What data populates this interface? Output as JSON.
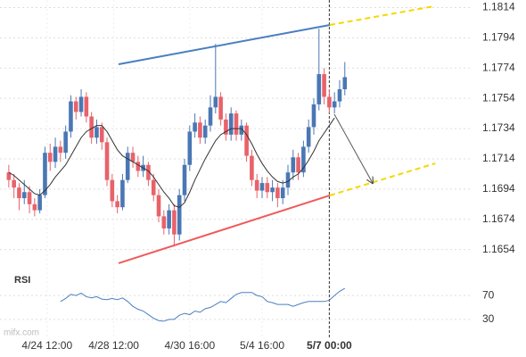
{
  "chart_data": {
    "type": "candlestick",
    "x": [
      0,
      1,
      2,
      3,
      4,
      5,
      6,
      7,
      8,
      9,
      10,
      11,
      12,
      13,
      14,
      15,
      16,
      17,
      18,
      19,
      20,
      21,
      22,
      23,
      24,
      25,
      26,
      27,
      28,
      29,
      30,
      31,
      32,
      33,
      34,
      35,
      36,
      37,
      38,
      39,
      40,
      41,
      42,
      43,
      44,
      45,
      46,
      47,
      48,
      49,
      50,
      51,
      52,
      53,
      54,
      55,
      56,
      57,
      58,
      59,
      60,
      61,
      62,
      63,
      64,
      65
    ],
    "open": [
      1.1705,
      1.17,
      1.1695,
      1.1688,
      1.1692,
      1.1684,
      1.168,
      1.169,
      1.1718,
      1.1712,
      1.1722,
      1.1718,
      1.1732,
      1.1752,
      1.1745,
      1.1755,
      1.1742,
      1.1728,
      1.1735,
      1.1725,
      1.17,
      1.1686,
      1.1682,
      1.17,
      1.1718,
      1.1712,
      1.1706,
      1.171,
      1.17,
      1.169,
      1.1676,
      1.1668,
      1.168,
      1.1664,
      1.169,
      1.171,
      1.1732,
      1.1738,
      1.1728,
      1.1736,
      1.1748,
      1.1755,
      1.174,
      1.173,
      1.1744,
      1.173,
      1.1736,
      1.1716,
      1.17,
      1.1693,
      1.1698,
      1.1692,
      1.1695,
      1.1688,
      1.1695,
      1.1705,
      1.1715,
      1.1705,
      1.1722,
      1.1735,
      1.175,
      1.177,
      1.1755,
      1.1748,
      1.1752,
      1.176
    ],
    "high": [
      1.171,
      1.1704,
      1.1698,
      1.17,
      1.1696,
      1.1688,
      1.1694,
      1.1722,
      1.1724,
      1.1728,
      1.1726,
      1.1736,
      1.1756,
      1.1755,
      1.176,
      1.1758,
      1.1745,
      1.174,
      1.1738,
      1.1728,
      1.1704,
      1.169,
      1.1704,
      1.1722,
      1.1722,
      1.1716,
      1.1716,
      1.1712,
      1.1704,
      1.1694,
      1.168,
      1.1684,
      1.1684,
      1.1694,
      1.1714,
      1.1736,
      1.1744,
      1.1742,
      1.174,
      1.1756,
      1.179,
      1.1758,
      1.1744,
      1.1748,
      1.1746,
      1.174,
      1.1738,
      1.172,
      1.1704,
      1.1702,
      1.1702,
      1.17,
      1.1698,
      1.17,
      1.171,
      1.172,
      1.1718,
      1.1726,
      1.174,
      1.1754,
      1.18,
      1.1774,
      1.176,
      1.1758,
      1.1766,
      1.1778
    ],
    "low": [
      1.1695,
      1.1688,
      1.168,
      1.1684,
      1.1678,
      1.1676,
      1.1678,
      1.1688,
      1.1706,
      1.1708,
      1.1712,
      1.1714,
      1.1728,
      1.174,
      1.1742,
      1.1738,
      1.1724,
      1.1724,
      1.172,
      1.1696,
      1.1682,
      1.1678,
      1.168,
      1.1698,
      1.1708,
      1.1702,
      1.1702,
      1.1696,
      1.1686,
      1.1672,
      1.1664,
      1.1664,
      1.1656,
      1.166,
      1.1686,
      1.1706,
      1.1728,
      1.1724,
      1.1724,
      1.1732,
      1.1744,
      1.1736,
      1.1726,
      1.1726,
      1.1726,
      1.1726,
      1.1712,
      1.1696,
      1.1688,
      1.1688,
      1.1688,
      1.1686,
      1.1682,
      1.1684,
      1.169,
      1.17,
      1.17,
      1.1702,
      1.1718,
      1.173,
      1.1746,
      1.175,
      1.1744,
      1.1744,
      1.1748,
      1.1756
    ],
    "close": [
      1.17,
      1.1695,
      1.1688,
      1.1692,
      1.1684,
      1.168,
      1.169,
      1.1718,
      1.1712,
      1.1722,
      1.1718,
      1.1732,
      1.1752,
      1.1745,
      1.1755,
      1.1742,
      1.1728,
      1.1735,
      1.1725,
      1.17,
      1.1686,
      1.1682,
      1.17,
      1.1718,
      1.1712,
      1.1706,
      1.171,
      1.17,
      1.169,
      1.1676,
      1.1668,
      1.168,
      1.1664,
      1.169,
      1.171,
      1.1732,
      1.1738,
      1.1728,
      1.1736,
      1.1748,
      1.1755,
      1.174,
      1.173,
      1.1744,
      1.173,
      1.1736,
      1.1716,
      1.17,
      1.1693,
      1.1698,
      1.1692,
      1.1695,
      1.1688,
      1.1695,
      1.1705,
      1.1715,
      1.1705,
      1.1722,
      1.1735,
      1.175,
      1.177,
      1.1755,
      1.1748,
      1.1752,
      1.176,
      1.1768
    ],
    "up_color": "#4a77b4",
    "down_color": "#e8626a",
    "ma": {
      "color": "#333333",
      "values": [
        1.1705,
        1.1703,
        1.17,
        1.1697,
        1.1694,
        1.1691,
        1.169,
        1.1693,
        1.1697,
        1.1702,
        1.1706,
        1.171,
        1.1716,
        1.1722,
        1.1728,
        1.1732,
        1.1734,
        1.1736,
        1.1736,
        1.1732,
        1.1726,
        1.172,
        1.1716,
        1.1714,
        1.1712,
        1.171,
        1.1708,
        1.1706,
        1.1702,
        1.1697,
        1.1692,
        1.1688,
        1.1683,
        1.1682,
        1.1685,
        1.1692,
        1.17,
        1.1707,
        1.1714,
        1.172,
        1.1726,
        1.173,
        1.1732,
        1.1734,
        1.1734,
        1.1734,
        1.173,
        1.1724,
        1.1717,
        1.1711,
        1.1706,
        1.1702,
        1.1699,
        1.1698,
        1.1699,
        1.1702,
        1.1704,
        1.1708,
        1.1713,
        1.1719,
        1.1726,
        1.1731,
        1.1736,
        1.1741,
        null,
        null
      ]
    },
    "drawings": [
      {
        "color": "#4a7fbf",
        "dashed": false,
        "arrow": false,
        "x": [
          21.24,
          62.1
        ],
        "y": [
          1.17765,
          1.18025
        ]
      },
      {
        "color": "#f5d800",
        "dashed": true,
        "arrow": false,
        "x": [
          62.1,
          82.5
        ],
        "y": [
          1.18025,
          1.1815
        ]
      },
      {
        "color": "#ef5a5a",
        "dashed": false,
        "arrow": false,
        "x": [
          21.24,
          62.1
        ],
        "y": [
          1.1645,
          1.16898
        ]
      },
      {
        "color": "#f5d800",
        "dashed": true,
        "arrow": false,
        "x": [
          62.1,
          82.5
        ],
        "y": [
          1.16898,
          1.1711
        ]
      },
      {
        "color": "#555555",
        "dashed": false,
        "arrow": true,
        "x": [
          62.97,
          70.4
        ],
        "y": [
          1.17435,
          1.16978
        ]
      }
    ],
    "xlim": [
      -1.7,
      89.7
    ],
    "ylim": [
      1.1642,
      1.1819
    ],
    "yticks": [
      1.1814,
      1.1794,
      1.1774,
      1.1754,
      1.1734,
      1.1714,
      1.1694,
      1.1674,
      1.1654
    ],
    "xticks": [
      {
        "value": 7.4,
        "label": "4/24 12:00"
      },
      {
        "value": 20.3,
        "label": "4/28 12:00"
      },
      {
        "value": 35,
        "label": "4/30 16:00"
      },
      {
        "value": 49,
        "label": "5/4 16:00"
      },
      {
        "value": 62,
        "label": "5/7 00:00"
      }
    ],
    "current_tick": 4,
    "grid": true,
    "rsi": {
      "title": "RSI",
      "color": "#4a7fbf",
      "ylim": [
        0,
        100
      ],
      "yticks": [
        70,
        30
      ],
      "values": [
        null,
        null,
        null,
        null,
        null,
        null,
        null,
        null,
        null,
        null,
        60,
        65,
        72,
        70,
        74,
        68,
        66,
        68,
        64,
        63,
        65,
        63,
        66,
        60,
        52,
        47,
        44,
        38,
        32,
        28,
        27,
        30,
        30,
        37,
        40,
        38,
        44,
        42,
        48,
        50,
        55,
        60,
        58,
        65,
        72,
        75,
        75,
        75,
        70,
        68,
        60,
        58,
        55,
        55,
        55,
        52,
        55,
        58,
        60,
        60,
        60,
        60,
        62,
        70,
        77,
        82
      ]
    },
    "watermark": "mifx.com"
  }
}
